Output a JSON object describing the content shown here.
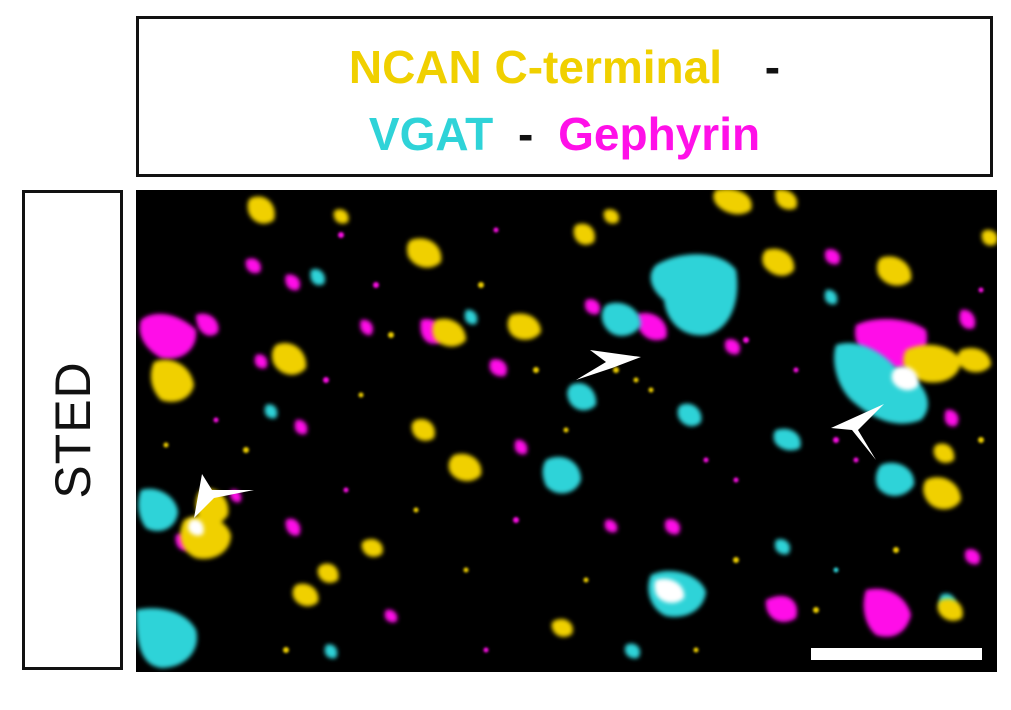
{
  "title": {
    "line1": {
      "ncan": "NCAN C-terminal",
      "sep": "-"
    },
    "line2": {
      "vgat": "VGAT",
      "sep": "-",
      "gephyrin": "Gephyrin"
    }
  },
  "row_label": "STED",
  "colors": {
    "ncan": "#f0d000",
    "vgat": "#2fd3d8",
    "gephyrin": "#ff10e8",
    "background": "#000000",
    "arrow": "#ffffff"
  }
}
